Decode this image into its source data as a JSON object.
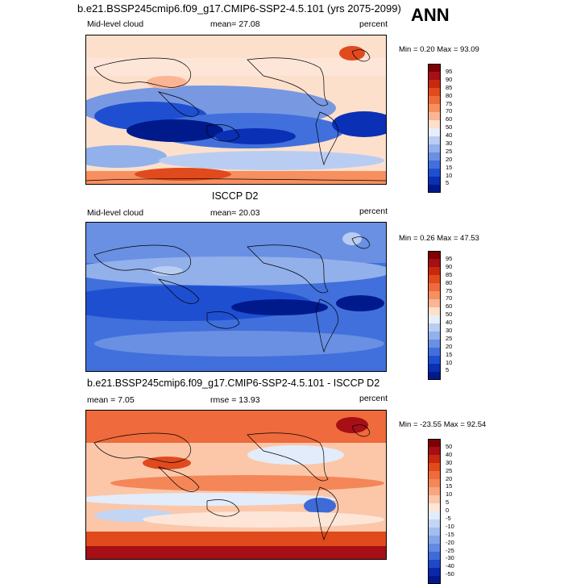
{
  "header": {
    "title": "b.e21.BSSP245cmip6.f09_g17.CMIP6-SSP2-4.5.101 (yrs 2075-2099)",
    "season": "ANN"
  },
  "panels": [
    {
      "id": "model",
      "center_title": "",
      "left_label": "Mid-level cloud",
      "stat_label": "mean=  27.08",
      "units": "percent",
      "minmax": "Min =   0.20 Max =  93.09",
      "levels": [
        "95",
        "90",
        "85",
        "80",
        "75",
        "70",
        "60",
        "50",
        "40",
        "30",
        "25",
        "20",
        "15",
        "10",
        "5"
      ],
      "colors": [
        "#7f0000",
        "#a50f15",
        "#c8290e",
        "#e04a1c",
        "#ef6a3c",
        "#f78f5f",
        "#fbb595",
        "#fde0cc",
        "#e6eefa",
        "#b9cdf2",
        "#92b0ea",
        "#6990e3",
        "#4170dc",
        "#1f4fd1",
        "#0a30b5",
        "#001a8c"
      ]
    },
    {
      "id": "obs",
      "center_title": "ISCCP D2",
      "left_label": "Mid-level cloud",
      "stat_label": "mean=  20.03",
      "units": "percent",
      "minmax": "Min =   0.26 Max =  47.53",
      "levels": [
        "95",
        "90",
        "85",
        "80",
        "75",
        "70",
        "60",
        "50",
        "40",
        "30",
        "25",
        "20",
        "15",
        "10",
        "5"
      ],
      "colors": [
        "#7f0000",
        "#a50f15",
        "#c8290e",
        "#e04a1c",
        "#ef6a3c",
        "#f78f5f",
        "#fbb595",
        "#fde0cc",
        "#e6eefa",
        "#b9cdf2",
        "#92b0ea",
        "#6990e3",
        "#4170dc",
        "#1f4fd1",
        "#0a30b5",
        "#001a8c"
      ]
    },
    {
      "id": "diff",
      "center_title": "b.e21.BSSP245cmip6.f09_g17.CMIP6-SSP2-4.5.101 - ISCCP D2",
      "left_label": "mean =   7.05",
      "stat_label": "rmse =  13.93",
      "units": "percent",
      "minmax": "Min = -23.55 Max =  92.54",
      "levels": [
        "50",
        "40",
        "30",
        "25",
        "20",
        "15",
        "10",
        "5",
        "0",
        "-5",
        "-10",
        "-15",
        "-20",
        "-25",
        "-30",
        "-40",
        "-50"
      ],
      "colors": [
        "#7f0000",
        "#a50f15",
        "#c8290e",
        "#e04a1c",
        "#ef6a3c",
        "#f48658",
        "#f9a57f",
        "#fcc7a9",
        "#fde6d8",
        "#e3ecfa",
        "#c3d5f4",
        "#a3bdee",
        "#83a5e8",
        "#628ae1",
        "#3f6bd8",
        "#1d48c8",
        "#0a28a8",
        "#001a8c"
      ]
    }
  ]
}
